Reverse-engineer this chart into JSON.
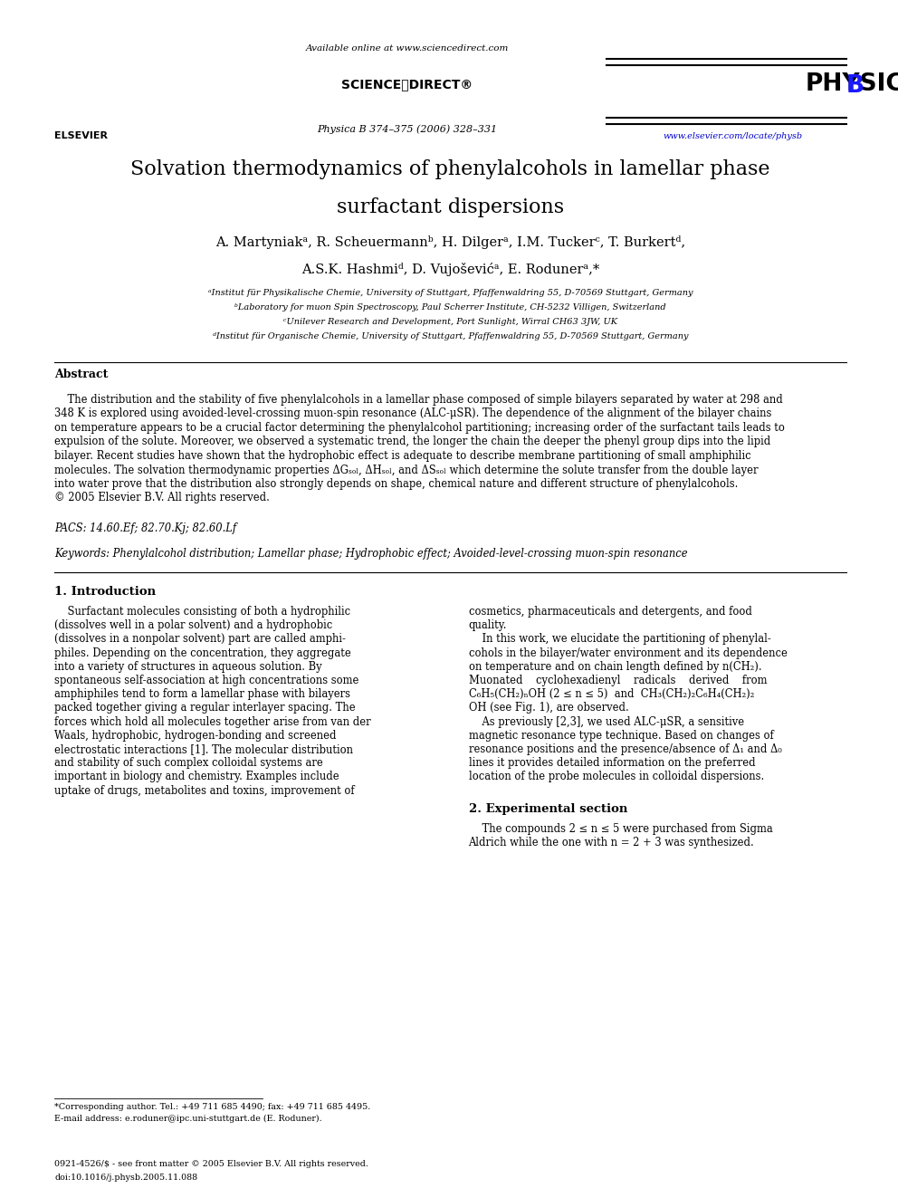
{
  "bg_color": "#ffffff",
  "header": {
    "available_online": "Available online at www.sciencedirect.com",
    "journal_info": "Physica B 374–375 (2006) 328–331",
    "elsevier_text": "ELSEVIER",
    "url": "www.elsevier.com/locate/physb"
  },
  "title_line1": "Solvation thermodynamics of phenylalcohols in lamellar phase",
  "title_line2": "surfactant dispersions",
  "authors_line1": "A. Martyniakᵃ, R. Scheuermannᵇ, H. Dilgerᵃ, I.M. Tuckerᶜ, T. Burkertᵈ,",
  "authors_line2": "A.S.K. Hashmiᵈ, D. Vujoševićᵃ, E. Rodunerᵃ,*",
  "affiliations": [
    "ᵃInstitut für Physikalische Chemie, University of Stuttgart, Pfaffenwaldring 55, D-70569 Stuttgart, Germany",
    "ᵇLaboratory for muon Spin Spectroscopy, Paul Scherrer Institute, CH-5232 Villigen, Switzerland",
    "ᶜUnilever Research and Development, Port Sunlight, Wirral CH63 3JW, UK",
    "ᵈInstitut für Organische Chemie, University of Stuttgart, Pfaffenwaldring 55, D-70569 Stuttgart, Germany"
  ],
  "abstract_title": "Abstract",
  "abstract_lines": [
    "    The distribution and the stability of five phenylalcohols in a lamellar phase composed of simple bilayers separated by water at 298 and",
    "348 K is explored using avoided-level-crossing muon-spin resonance (ALC-μSR). The dependence of the alignment of the bilayer chains",
    "on temperature appears to be a crucial factor determining the phenylalcohol partitioning; increasing order of the surfactant tails leads to",
    "expulsion of the solute. Moreover, we observed a systematic trend, the longer the chain the deeper the phenyl group dips into the lipid",
    "bilayer. Recent studies have shown that the hydrophobic effect is adequate to describe membrane partitioning of small amphiphilic",
    "molecules. The solvation thermodynamic properties ΔGₛₒₗ, ΔHₛₒₗ, and ΔSₛₒₗ which determine the solute transfer from the double layer",
    "into water prove that the distribution also strongly depends on shape, chemical nature and different structure of phenylalcohols.",
    "© 2005 Elsevier B.V. All rights reserved."
  ],
  "pacs": "PACS: 14.60.Ef; 82.70.Kj; 82.60.Lf",
  "keywords": "Keywords: Phenylalcohol distribution; Lamellar phase; Hydrophobic effect; Avoided-level-crossing muon-spin resonance",
  "section1_title": "1. Introduction",
  "section1_left_lines": [
    "    Surfactant molecules consisting of both a hydrophilic",
    "(dissolves well in a polar solvent) and a hydrophobic",
    "(dissolves in a nonpolar solvent) part are called amphi-",
    "philes. Depending on the concentration, they aggregate",
    "into a variety of structures in aqueous solution. By",
    "spontaneous self-association at high concentrations some",
    "amphiphiles tend to form a lamellar phase with bilayers",
    "packed together giving a regular interlayer spacing. The",
    "forces which hold all molecules together arise from van der",
    "Waals, hydrophobic, hydrogen-bonding and screened",
    "electrostatic interactions [1]. The molecular distribution",
    "and stability of such complex colloidal systems are",
    "important in biology and chemistry. Examples include",
    "uptake of drugs, metabolites and toxins, improvement of"
  ],
  "section1_right_lines": [
    "cosmetics, pharmaceuticals and detergents, and food",
    "quality.",
    "    In this work, we elucidate the partitioning of phenylal-",
    "cohols in the bilayer/water environment and its dependence",
    "on temperature and on chain length defined by n(CH₂).",
    "Muonated    cyclohexadienyl    radicals    derived    from",
    "C₆H₅(CH₂)ₙOH (2 ≤ n ≤ 5)  and  CH₃(CH₂)₂C₆H₄(CH₂)₂",
    "OH (see Fig. 1), are observed.",
    "    As previously [2,3], we used ALC-μSR, a sensitive",
    "magnetic resonance type technique. Based on changes of",
    "resonance positions and the presence/absence of Δ₁ and Δ₀",
    "lines it provides detailed information on the preferred",
    "location of the probe molecules in colloidal dispersions."
  ],
  "section2_title": "2. Experimental section",
  "section2_right_lines": [
    "    The compounds 2 ≤ n ≤ 5 were purchased from Sigma",
    "Aldrich while the one with n = 2 + 3 was synthesized."
  ],
  "footnote": "*Corresponding author. Tel.: +49 711 685 4490; fax: +49 711 685 4495.",
  "footnote2": "E-mail address: e.roduner@ipc.uni-stuttgart.de (E. Roduner).",
  "copyright1": "0921-4526/$ - see front matter © 2005 Elsevier B.V. All rights reserved.",
  "copyright2": "doi:10.1016/j.physb.2005.11.088"
}
